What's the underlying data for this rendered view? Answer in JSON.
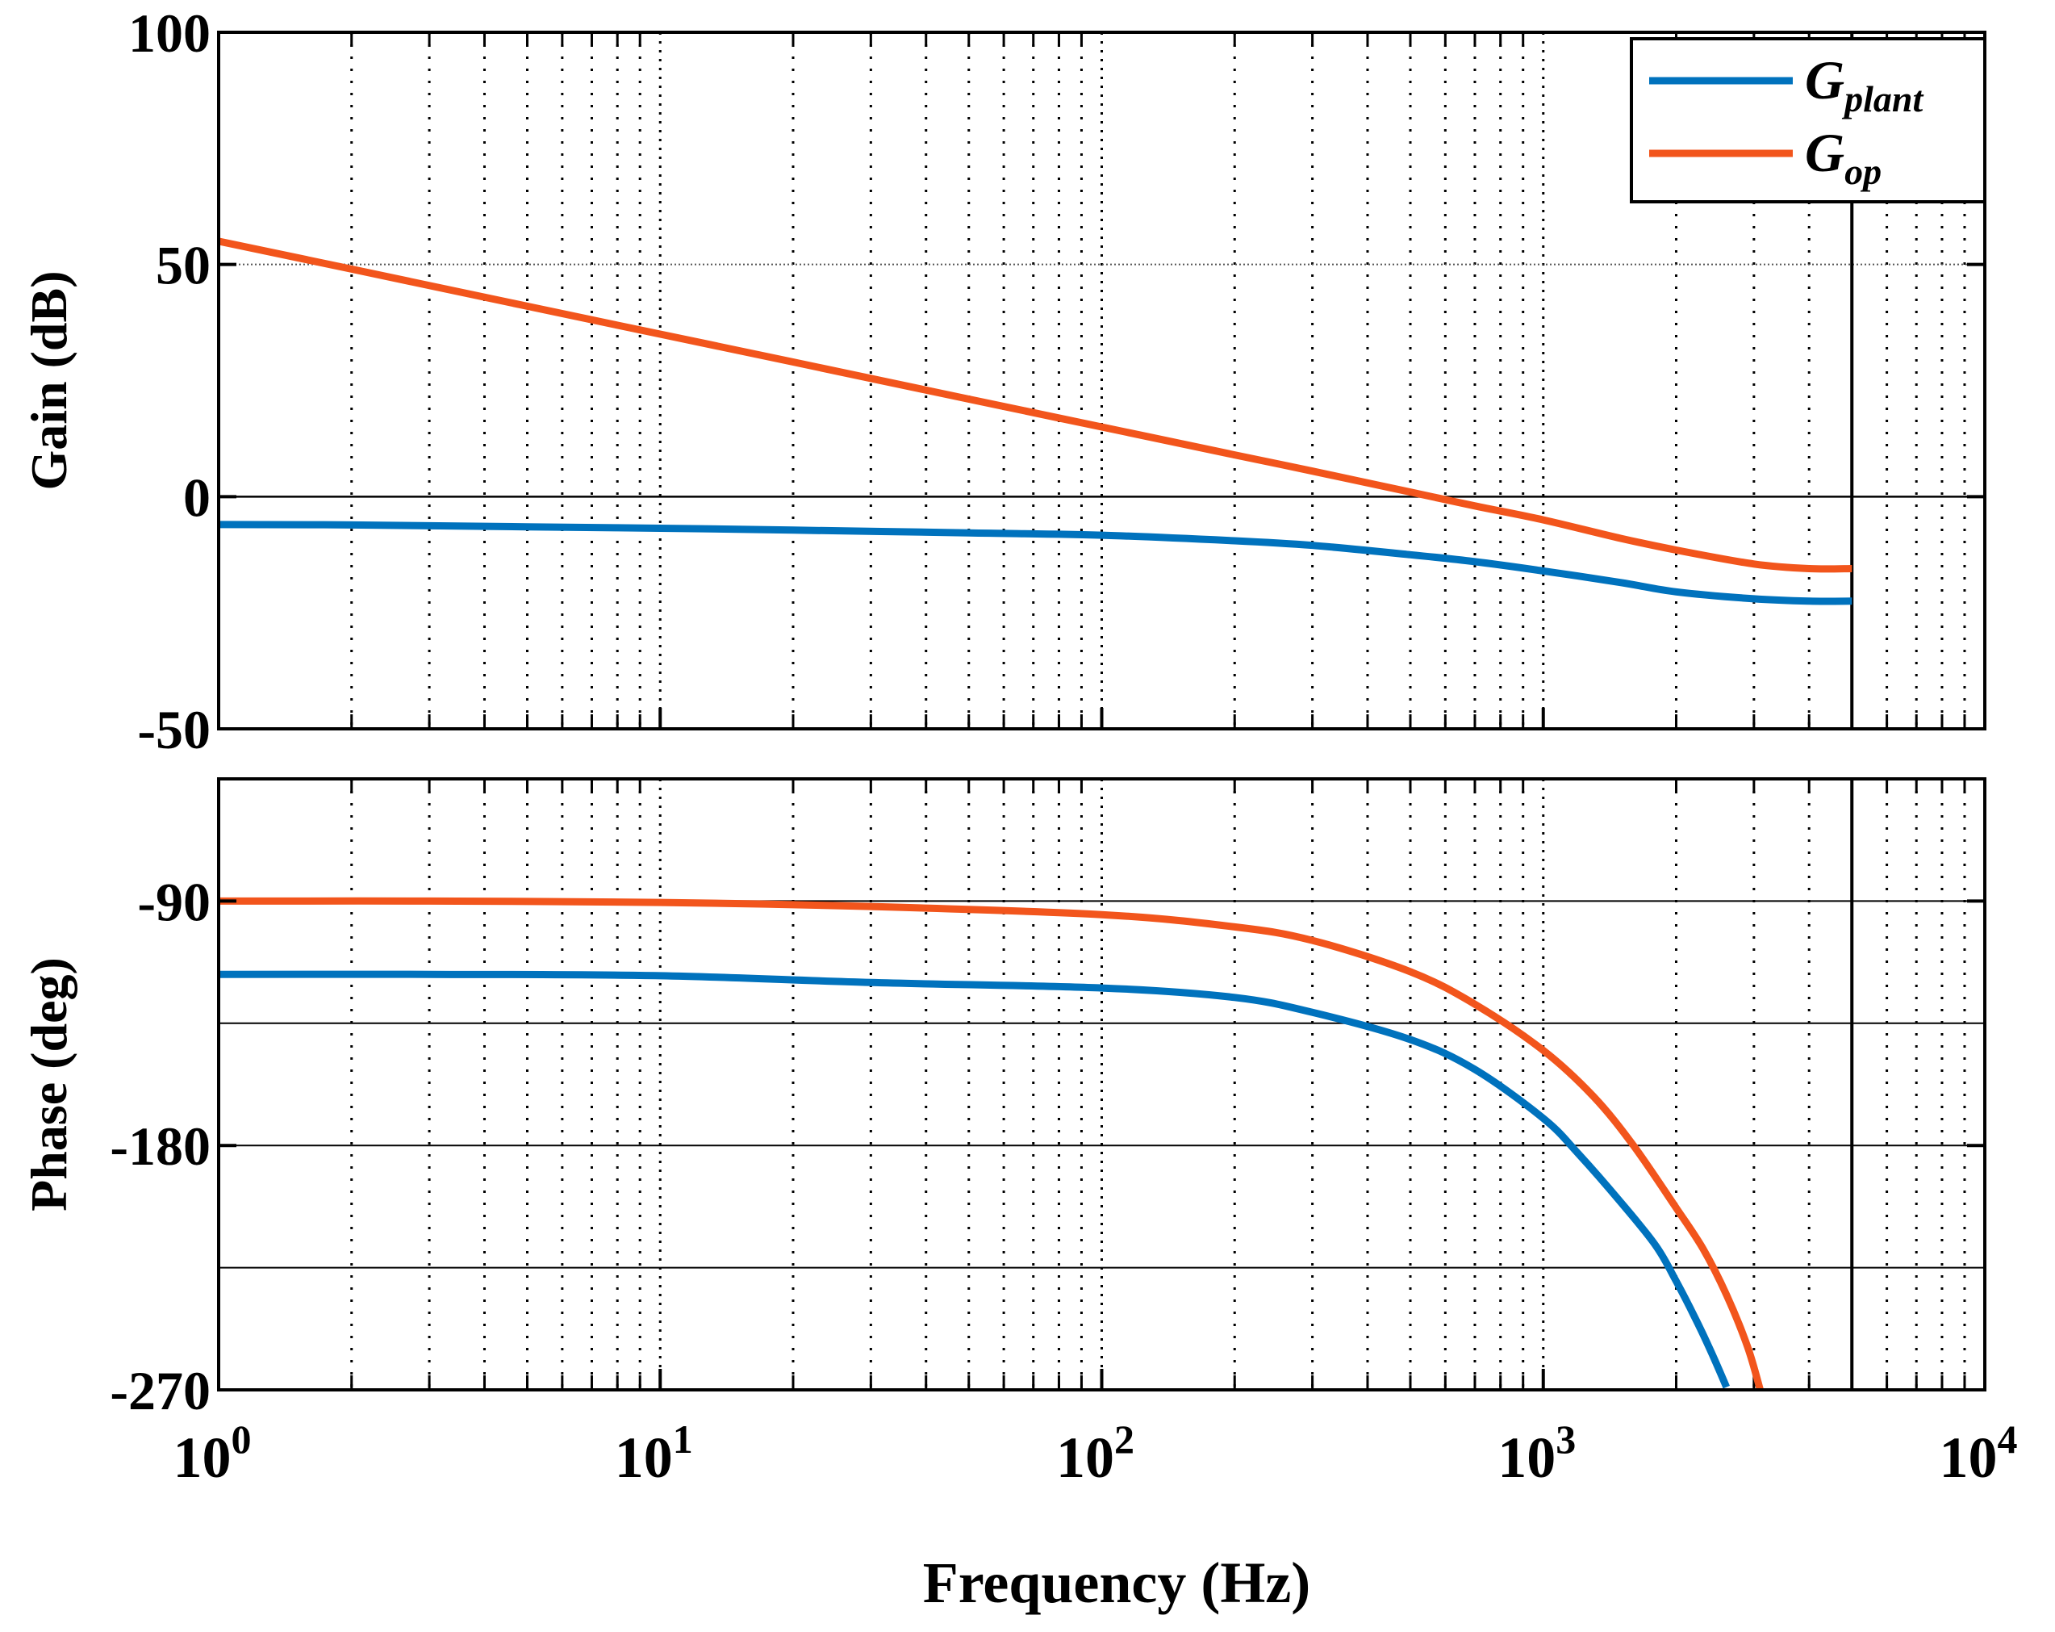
{
  "chart_data": {
    "type": "line",
    "title": "",
    "xlabel": "Frequency (Hz)",
    "x_scale": "log",
    "xlim": [
      1,
      10000
    ],
    "x_ticks": [
      {
        "base": "10",
        "exp": "0"
      },
      {
        "base": "10",
        "exp": "1"
      },
      {
        "base": "10",
        "exp": "2"
      },
      {
        "base": "10",
        "exp": "3"
      },
      {
        "base": "10",
        "exp": "4"
      }
    ],
    "marker_frequency": 5000,
    "grid": true,
    "legend": {
      "placement": "top-right",
      "entries": [
        {
          "main": "G",
          "sub": "plant",
          "color": "#0072BD"
        },
        {
          "main": "G",
          "sub": "op",
          "color": "#F2551C"
        }
      ]
    },
    "panels": [
      {
        "name": "gain",
        "ylabel": "Gain (dB)",
        "ylim": [
          -50,
          100
        ],
        "y_ticks": [
          "100",
          "50",
          "0",
          "-50"
        ],
        "series": [
          {
            "name": "G_plant",
            "color": "#0072BD",
            "x": [
              1,
              2,
              5,
              10,
              20,
              50,
              100,
              200,
              300,
              500,
              700,
              1000,
              1500,
              2000,
              3000,
              4000,
              5000
            ],
            "y": [
              -6,
              -6.1,
              -6.5,
              -6.8,
              -7.2,
              -7.8,
              -8.3,
              -9.5,
              -10.5,
              -12.5,
              -14,
              -16,
              -18.5,
              -20.5,
              -22,
              -22.5,
              -22.5
            ]
          },
          {
            "name": "G_op",
            "color": "#F2551C",
            "x": [
              1,
              2,
              5,
              10,
              20,
              50,
              100,
              200,
              300,
              500,
              700,
              1000,
              1500,
              2000,
              3000,
              4000,
              5000
            ],
            "y": [
              55,
              49,
              41,
              35,
              29,
              21,
              15,
              9,
              5.5,
              1,
              -2,
              -5,
              -9,
              -11.5,
              -14.5,
              -15.5,
              -15.5
            ]
          }
        ]
      },
      {
        "name": "phase",
        "ylabel": "Phase (deg)",
        "ylim": [
          -270,
          -45
        ],
        "y_ticks": [
          "-90",
          "-180",
          "-270"
        ],
        "y_tick_values": [
          -90,
          -180,
          -270
        ],
        "hlines": [
          -90,
          -135,
          -180,
          -225
        ],
        "series": [
          {
            "name": "G_plant",
            "color": "#0072BD",
            "x": [
              1,
              3,
              10,
              30,
              100,
              200,
              300,
              500,
              700,
              1000,
              1200,
              1500,
              1800,
              2000,
              2200,
              2400,
              2600
            ],
            "y": [
              -117,
              -117,
              -117.5,
              -120,
              -122,
              -125.5,
              -131,
              -141,
              -152,
              -170,
              -183,
              -201,
              -217,
              -230,
              -243,
              -256,
              -269
            ]
          },
          {
            "name": "G_op",
            "color": "#F2551C",
            "x": [
              1,
              3,
              10,
              30,
              100,
              200,
              300,
              500,
              700,
              1000,
              1300,
              1600,
              2000,
              2300,
              2600,
              2900,
              3100
            ],
            "y": [
              -90,
              -90,
              -90.5,
              -92,
              -95,
              -99.5,
              -104.5,
              -116,
              -128,
              -145,
              -162,
              -180,
              -203,
              -218,
              -235,
              -254,
              -270
            ]
          }
        ]
      }
    ]
  }
}
